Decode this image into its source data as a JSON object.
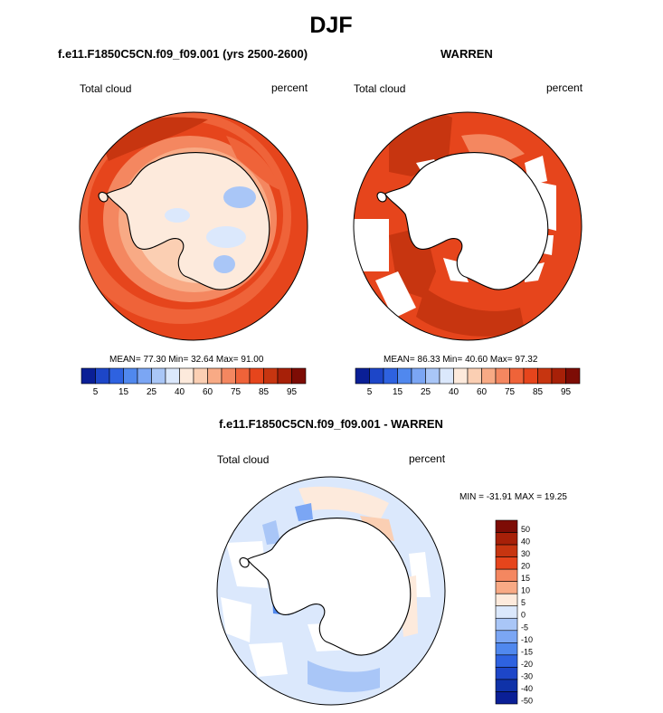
{
  "page": {
    "title": "DJF",
    "bottom_title": "f.e11.F1850C5CN.f09_f09.001 - WARREN"
  },
  "chart_data": [
    {
      "type": "polar-contour-map",
      "title": "f.e11.F1850C5CN.f09_f09.001 (yrs 2500-2600)",
      "left_label": "Total cloud",
      "right_label": "percent",
      "stats": {
        "mean_label": "MEAN=",
        "mean": "77.30",
        "min_label": "Min=",
        "min": "32.64",
        "max_label": "Max=",
        "max": "91.00"
      },
      "colorbar": {
        "orientation": "horizontal",
        "colors": [
          "#0a1f96",
          "#1d46c8",
          "#2e62e0",
          "#5088ee",
          "#7ba6f4",
          "#a9c6f7",
          "#dbe8fc",
          "#fdeadc",
          "#fbcfb3",
          "#f8aa85",
          "#f48760",
          "#ef6339",
          "#e6451c",
          "#c73510",
          "#a72008",
          "#7d0c05"
        ],
        "tick_labels": [
          "5",
          "15",
          "25",
          "40",
          "60",
          "75",
          "85",
          "95"
        ]
      }
    },
    {
      "type": "polar-contour-map",
      "title": "WARREN",
      "left_label": "Total cloud",
      "right_label": "percent",
      "stats": {
        "mean_label": "MEAN=",
        "mean": "86.33",
        "min_label": "Min=",
        "min": "40.60",
        "max_label": "Max=",
        "max": "97.32"
      },
      "colorbar": {
        "orientation": "horizontal",
        "colors": [
          "#0a1f96",
          "#1d46c8",
          "#2e62e0",
          "#5088ee",
          "#7ba6f4",
          "#a9c6f7",
          "#dbe8fc",
          "#fdeadc",
          "#fbcfb3",
          "#f8aa85",
          "#f48760",
          "#ef6339",
          "#e6451c",
          "#c73510",
          "#a72008",
          "#7d0c05"
        ],
        "tick_labels": [
          "5",
          "15",
          "25",
          "40",
          "60",
          "75",
          "85",
          "95"
        ]
      }
    },
    {
      "type": "polar-contour-map",
      "title": "",
      "left_label": "Total cloud",
      "right_label": "percent",
      "stats": {
        "text": "MIN = -31.91 MAX =  19.25"
      },
      "colorbar": {
        "orientation": "vertical",
        "colors": [
          "#7d0c05",
          "#a72008",
          "#c73510",
          "#e6451c",
          "#f48760",
          "#f8aa85",
          "#fdeadc",
          "#dbe8fc",
          "#a9c6f7",
          "#7ba6f4",
          "#5088ee",
          "#2e62e0",
          "#1d46c8",
          "#0f32a8",
          "#0a1f96"
        ],
        "tick_labels": [
          "50",
          "40",
          "30",
          "20",
          "15",
          "10",
          "5",
          "0",
          "-5",
          "-10",
          "-15",
          "-20",
          "-30",
          "-40",
          "-50"
        ]
      }
    }
  ]
}
